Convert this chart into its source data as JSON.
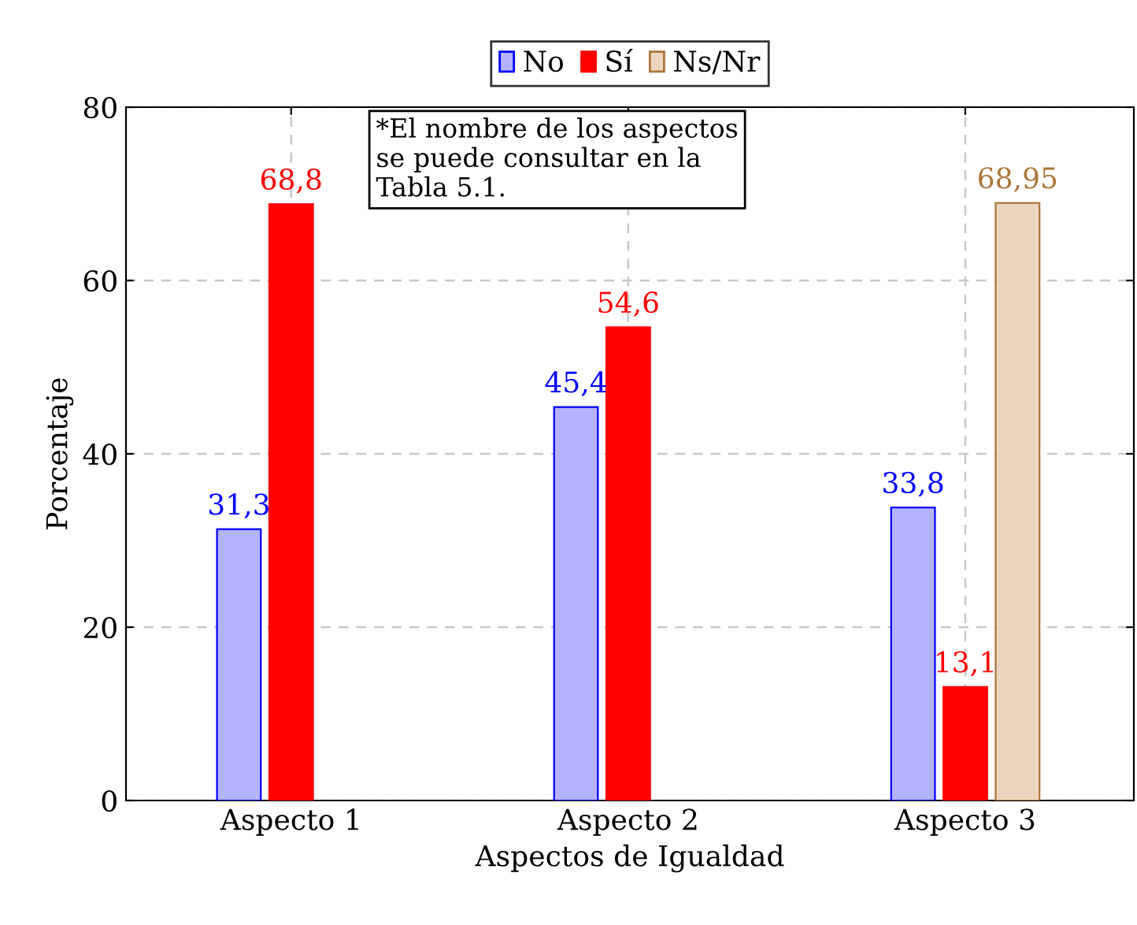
{
  "chart_data": {
    "type": "bar",
    "xlabel": "Aspectos de Igualdad",
    "ylabel": "Porcentaje",
    "categories": [
      "Aspecto 1",
      "Aspecto 2",
      "Aspecto 3"
    ],
    "series": [
      {
        "name": "No",
        "color": "#b3b3ff",
        "values": [
          31.3,
          45.4,
          33.8
        ],
        "value_labels": [
          "31,3",
          "45,4",
          "33,8"
        ]
      },
      {
        "name": "Sí",
        "color": "#ff0000",
        "values": [
          68.8,
          54.6,
          13.1
        ],
        "value_labels": [
          "68,8",
          "54,6",
          "13,1"
        ]
      },
      {
        "name": "Ns/Nr",
        "color": "#ead6c0",
        "values": [
          null,
          null,
          68.95
        ],
        "value_labels": [
          null,
          null,
          "68,95"
        ]
      }
    ],
    "ylim": [
      0,
      80
    ],
    "yticks": [
      0,
      20,
      40,
      60,
      80
    ],
    "grid": true,
    "legend": "top",
    "annotations": [
      "*El nombre de los aspectos\nse puede consultar en la\nTabla 5.1."
    ]
  }
}
